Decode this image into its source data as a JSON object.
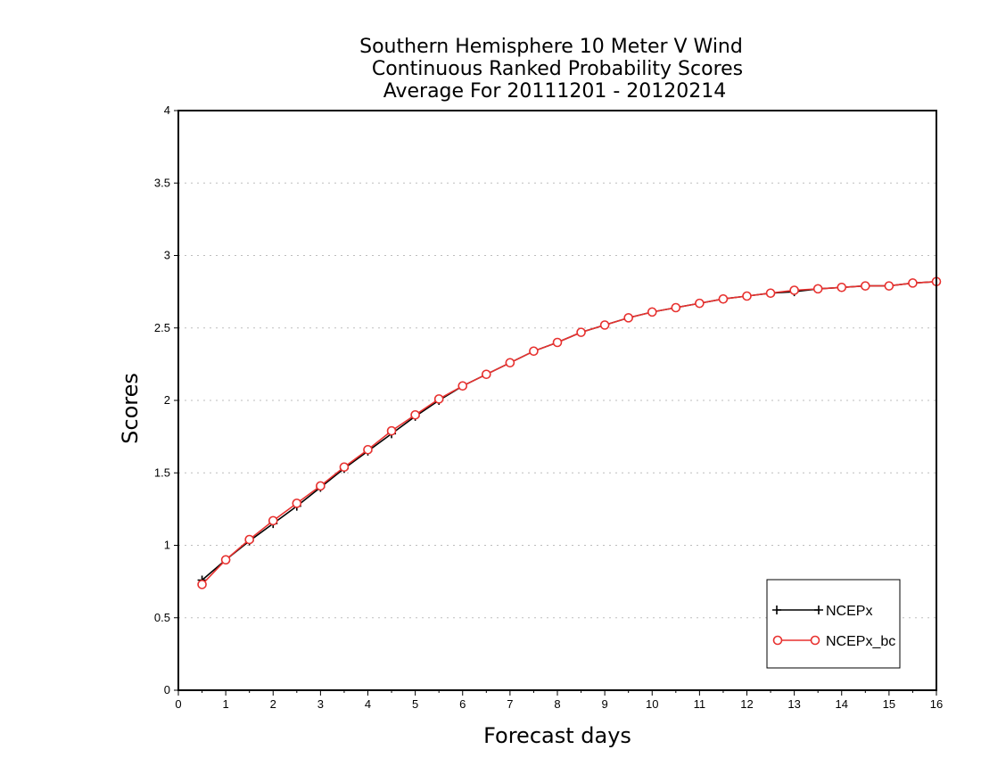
{
  "chart_data": {
    "type": "line",
    "title": [
      "Southern Hemisphere 10 Meter V Wind",
      "Continuous Ranked Probability Scores",
      "Average For 20111201 - 20120214"
    ],
    "xlabel": "Forecast days",
    "ylabel": "Scores",
    "xlim": [
      0,
      16
    ],
    "ylim": [
      0,
      4
    ],
    "x_ticks": [
      "0",
      "1",
      "2",
      "3",
      "4",
      "5",
      "6",
      "7",
      "8",
      "9",
      "10",
      "11",
      "12",
      "13",
      "14",
      "15",
      "16"
    ],
    "y_ticks": [
      "0",
      "0.5",
      "1",
      "1.5",
      "2",
      "2.5",
      "3",
      "3.5",
      "4"
    ],
    "grid": "horizontal dotted",
    "legend_position": "bottom-right",
    "x": [
      0.5,
      1,
      1.5,
      2,
      2.5,
      3,
      3.5,
      4,
      4.5,
      5,
      5.5,
      6,
      6.5,
      7,
      7.5,
      8,
      8.5,
      9,
      9.5,
      10,
      10.5,
      11,
      11.5,
      12,
      12.5,
      13,
      13.5,
      14,
      14.5,
      15,
      15.5,
      16
    ],
    "series": [
      {
        "name": "NCEPx",
        "color": "#000000",
        "marker": "plus",
        "values": [
          0.76,
          0.9,
          1.03,
          1.15,
          1.27,
          1.4,
          1.53,
          1.65,
          1.77,
          1.89,
          2.0,
          2.1,
          2.18,
          2.26,
          2.34,
          2.4,
          2.47,
          2.52,
          2.57,
          2.61,
          2.64,
          2.67,
          2.7,
          2.72,
          2.74,
          2.75,
          2.77,
          2.78,
          2.79,
          2.79,
          2.81,
          2.82
        ]
      },
      {
        "name": "NCEPx_bc",
        "color": "#e8312f",
        "marker": "circle",
        "values": [
          0.73,
          0.9,
          1.04,
          1.17,
          1.29,
          1.41,
          1.54,
          1.66,
          1.79,
          1.9,
          2.01,
          2.1,
          2.18,
          2.26,
          2.34,
          2.4,
          2.47,
          2.52,
          2.57,
          2.61,
          2.64,
          2.67,
          2.7,
          2.72,
          2.74,
          2.76,
          2.77,
          2.78,
          2.79,
          2.79,
          2.81,
          2.82
        ]
      }
    ]
  }
}
